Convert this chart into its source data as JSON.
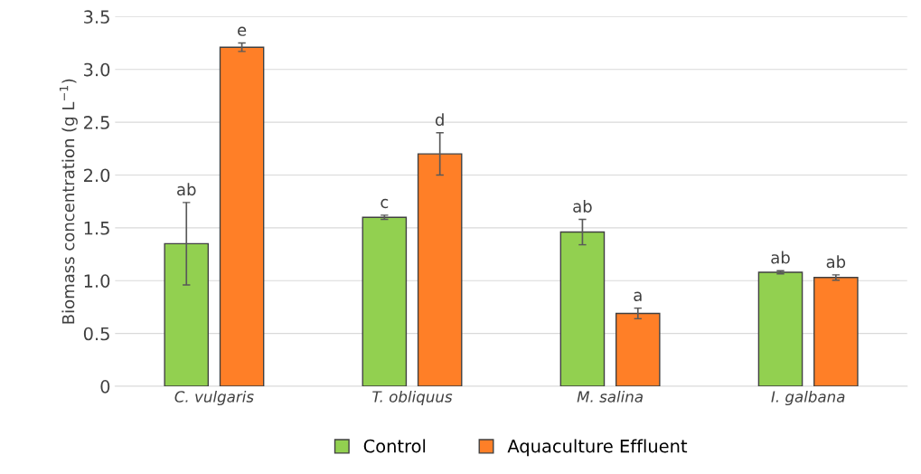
{
  "chart_data": {
    "type": "bar",
    "ylabel": "Biomass concentration (g L$^{−1}$)",
    "categories": [
      "C. vulgaris",
      "T. obliquus",
      "M. salina",
      "I. galbana"
    ],
    "series": [
      {
        "name": "Control",
        "color": "#92d050",
        "values": [
          1.35,
          1.6,
          1.46,
          1.08
        ],
        "errors": [
          0.39,
          0.02,
          0.12,
          0.015
        ],
        "value_labels": [
          "ab",
          "c",
          "ab",
          "ab"
        ]
      },
      {
        "name": "Aquaculture Effluent",
        "color": "#ff7f27",
        "values": [
          3.21,
          2.2,
          0.69,
          1.03
        ],
        "errors": [
          0.04,
          0.2,
          0.05,
          0.025
        ],
        "value_labels": [
          "e",
          "d",
          "a",
          "ab"
        ]
      }
    ],
    "ylim": [
      0,
      3.5
    ],
    "yticks": [
      0,
      {
        "value": 0.5,
        "label": "0.5"
      },
      {
        "value": 1.0,
        "label": "1.0"
      },
      {
        "value": 1.5,
        "label": "1.5"
      },
      {
        "value": 2.0,
        "label": "2.0"
      },
      {
        "value": 2.5,
        "label": "2.5"
      },
      {
        "value": 3.0,
        "label": "3.0"
      },
      {
        "value": 3.5,
        "label": "3.5"
      }
    ],
    "grid": "y",
    "legend": "bottom"
  }
}
